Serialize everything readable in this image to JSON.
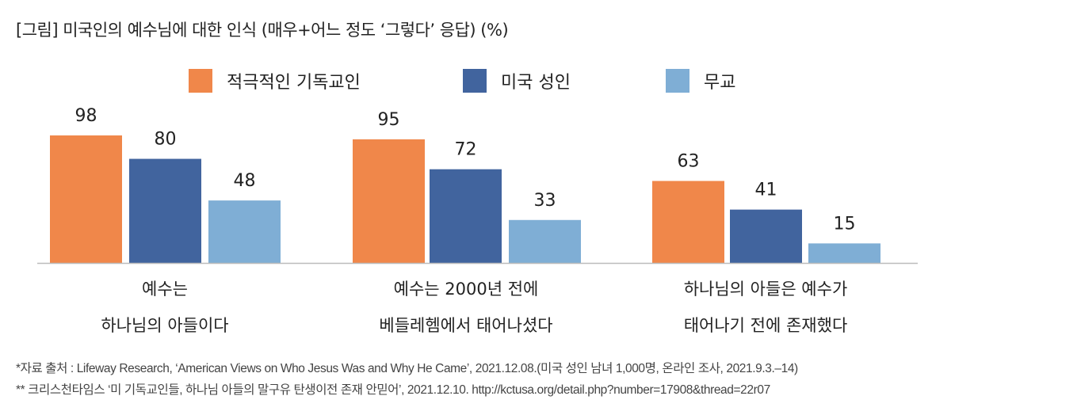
{
  "colors": {
    "적극적인 기독교인": "#F0874A",
    "미국 성인": "#41649E",
    "무교": "#7FAED5",
    "axis": "#BBBBBB"
  },
  "chart_data": {
    "type": "bar",
    "title": "[그림] 미국인의 예수님에 대한 인식 (매우+어느 정도 ‘그렇다’ 응답) (%)",
    "categories": [
      [
        "예수는",
        "하나님의 아들이다"
      ],
      [
        "예수는 2000년 전에",
        "베들레헴에서 태어나셨다"
      ],
      [
        "하나님의 아들은 예수가",
        "태어나기 전에 존재했다"
      ]
    ],
    "series": [
      {
        "name": "적극적인 기독교인",
        "values": [
          98,
          95,
          63
        ]
      },
      {
        "name": "미국 성인",
        "values": [
          80,
          72,
          41
        ]
      },
      {
        "name": "무교",
        "values": [
          48,
          33,
          15
        ]
      }
    ],
    "ylim": [
      0,
      100
    ],
    "grid": false,
    "legend": "top-center",
    "xlabel": "",
    "ylabel": ""
  },
  "notes": [
    "*자료 출처 : Lifeway Research, ‘American Views on Who Jesus Was and Why He Came’, 2021.12.08.(미국 성인 남녀 1,000명, 온라인 조사, 2021.9.3.–14)",
    "** 크리스천타임스 ‘미 기독교인들, 하나님 아들의 말구유 탄생이전 존재 안믿어’, 2021.12.10. http://kctusa.org/detail.php?number=17908&thread=22r07"
  ]
}
